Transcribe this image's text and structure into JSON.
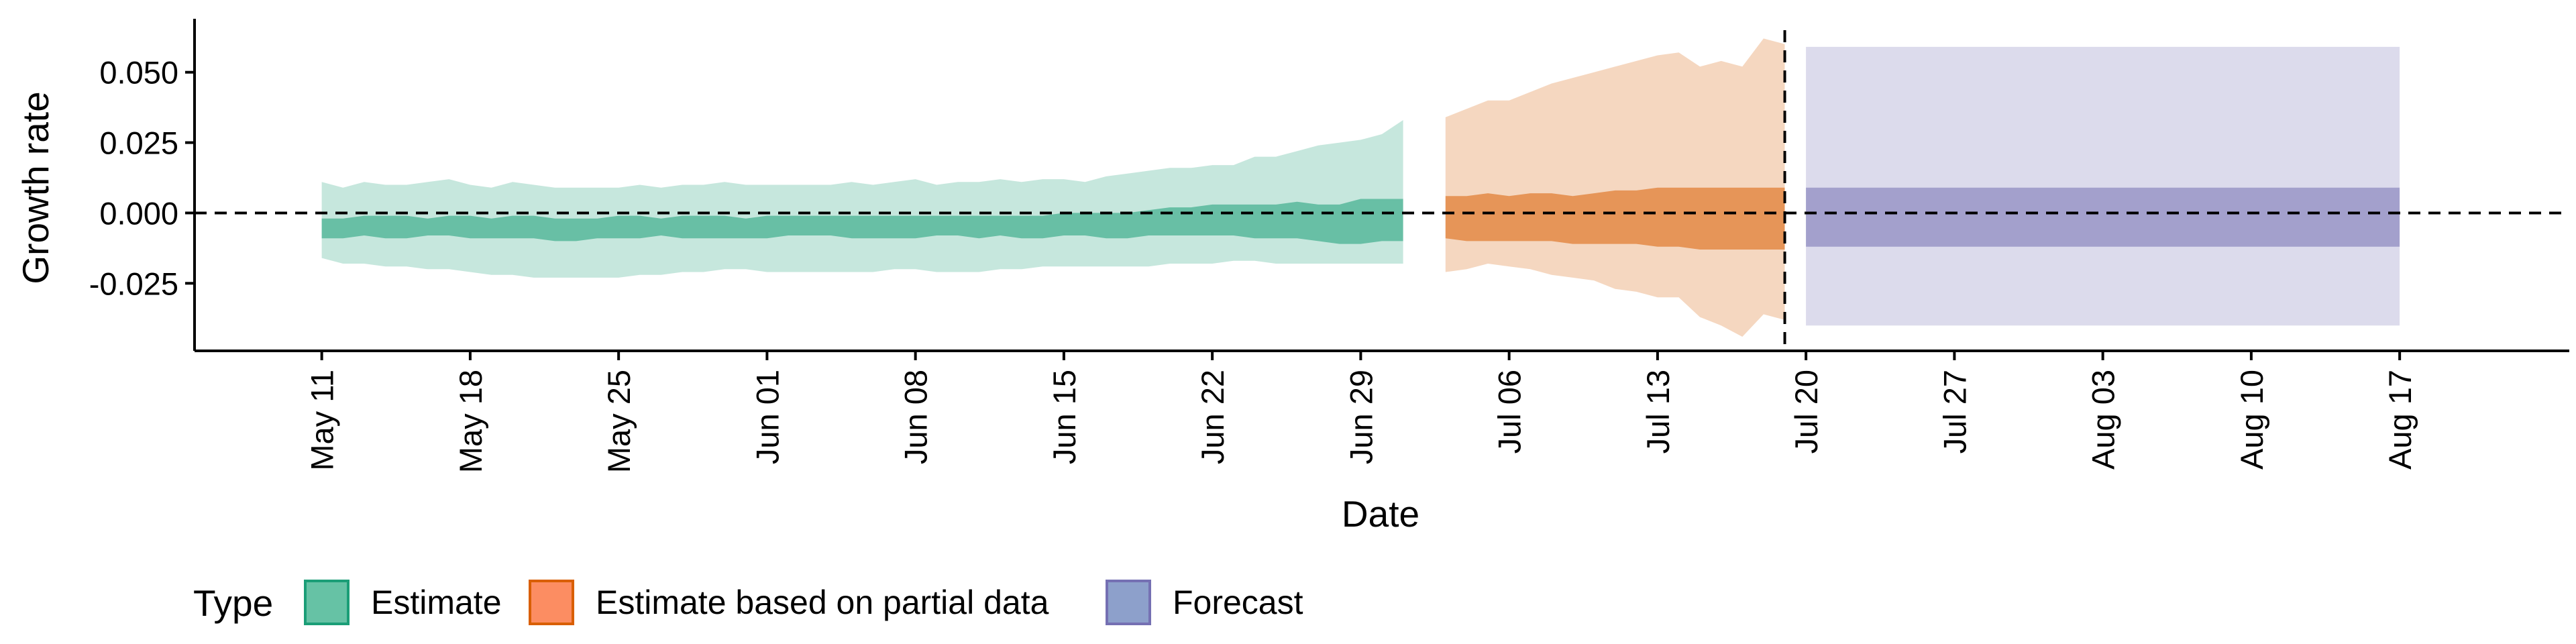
{
  "chart_data": {
    "type": "area",
    "xlabel": "Date",
    "ylabel": "Growth rate",
    "x_axis": {
      "type": "date",
      "ticks": [
        "2020-05-11",
        "2020-05-18",
        "2020-05-25",
        "2020-06-01",
        "2020-06-08",
        "2020-06-15",
        "2020-06-22",
        "2020-06-29",
        "2020-07-06",
        "2020-07-13",
        "2020-07-20",
        "2020-07-27",
        "2020-08-03",
        "2020-08-10",
        "2020-08-17"
      ],
      "tick_labels": [
        "May 11",
        "May 18",
        "May 25",
        "Jun 01",
        "Jun 08",
        "Jun 15",
        "Jun 22",
        "Jun 29",
        "Jul 06",
        "Jul 13",
        "Jul 20",
        "Jul 27",
        "Aug 03",
        "Aug 10",
        "Aug 17"
      ],
      "range": [
        "2020-05-05",
        "2020-08-25"
      ]
    },
    "y_axis": {
      "ticks": [
        0.05,
        0.025,
        0.0,
        -0.025
      ],
      "tick_labels": [
        "0.050",
        "0.025",
        "0.000",
        "-0.025"
      ],
      "range": [
        -0.049,
        0.069
      ]
    },
    "reference_lines": {
      "horizontal_y": 0.0,
      "vertical_x": "2020-07-19",
      "style": "dashed"
    },
    "legend": {
      "title": "Type",
      "position": "bottom-left",
      "items": [
        {
          "label": "Estimate",
          "color": "#66c2a5"
        },
        {
          "label": "Estimate based on partial data",
          "color": "#fc8d62"
        },
        {
          "label": "Forecast",
          "color": "#8da0cb"
        }
      ]
    },
    "series": [
      {
        "name": "Estimate",
        "color": "#1b9e77",
        "x": [
          "2020-05-11",
          "2020-05-12",
          "2020-05-13",
          "2020-05-14",
          "2020-05-15",
          "2020-05-16",
          "2020-05-17",
          "2020-05-18",
          "2020-05-19",
          "2020-05-20",
          "2020-05-21",
          "2020-05-22",
          "2020-05-23",
          "2020-05-24",
          "2020-05-25",
          "2020-05-26",
          "2020-05-27",
          "2020-05-28",
          "2020-05-29",
          "2020-05-30",
          "2020-05-31",
          "2020-06-01",
          "2020-06-02",
          "2020-06-03",
          "2020-06-04",
          "2020-06-05",
          "2020-06-06",
          "2020-06-07",
          "2020-06-08",
          "2020-06-09",
          "2020-06-10",
          "2020-06-11",
          "2020-06-12",
          "2020-06-13",
          "2020-06-14",
          "2020-06-15",
          "2020-06-16",
          "2020-06-17",
          "2020-06-18",
          "2020-06-19",
          "2020-06-20",
          "2020-06-21",
          "2020-06-22",
          "2020-06-23",
          "2020-06-24",
          "2020-06-25",
          "2020-06-26",
          "2020-06-27",
          "2020-06-28",
          "2020-06-29",
          "2020-06-30",
          "2020-07-01"
        ],
        "outer_upper": [
          0.011,
          0.009,
          0.011,
          0.01,
          0.01,
          0.011,
          0.012,
          0.01,
          0.009,
          0.011,
          0.01,
          0.009,
          0.009,
          0.009,
          0.009,
          0.01,
          0.009,
          0.01,
          0.01,
          0.011,
          0.01,
          0.01,
          0.01,
          0.01,
          0.01,
          0.011,
          0.01,
          0.011,
          0.012,
          0.01,
          0.011,
          0.011,
          0.012,
          0.011,
          0.012,
          0.012,
          0.011,
          0.013,
          0.014,
          0.015,
          0.016,
          0.016,
          0.017,
          0.017,
          0.02,
          0.02,
          0.022,
          0.024,
          0.025,
          0.026,
          0.028,
          0.033
        ],
        "inner_upper": [
          -0.002,
          -0.002,
          -0.001,
          -0.001,
          -0.001,
          -0.002,
          -0.001,
          -0.001,
          -0.002,
          -0.001,
          -0.001,
          -0.002,
          -0.002,
          -0.002,
          -0.001,
          -0.001,
          -0.002,
          -0.001,
          -0.001,
          -0.001,
          -0.002,
          -0.001,
          -0.001,
          -0.001,
          -0.001,
          -0.001,
          -0.001,
          -0.001,
          -0.001,
          -0.001,
          -0.001,
          -0.001,
          -0.001,
          -0.001,
          -0.001,
          0.0,
          0.0,
          0.0,
          0.0,
          0.001,
          0.002,
          0.002,
          0.003,
          0.003,
          0.003,
          0.003,
          0.004,
          0.003,
          0.003,
          0.005,
          0.005,
          0.005
        ],
        "inner_lower": [
          -0.009,
          -0.009,
          -0.008,
          -0.009,
          -0.009,
          -0.008,
          -0.008,
          -0.009,
          -0.009,
          -0.009,
          -0.009,
          -0.01,
          -0.01,
          -0.009,
          -0.009,
          -0.009,
          -0.008,
          -0.009,
          -0.009,
          -0.009,
          -0.009,
          -0.009,
          -0.008,
          -0.008,
          -0.008,
          -0.009,
          -0.009,
          -0.009,
          -0.009,
          -0.008,
          -0.008,
          -0.009,
          -0.008,
          -0.009,
          -0.009,
          -0.008,
          -0.008,
          -0.009,
          -0.009,
          -0.008,
          -0.008,
          -0.008,
          -0.008,
          -0.008,
          -0.009,
          -0.009,
          -0.009,
          -0.01,
          -0.011,
          -0.011,
          -0.01,
          -0.01
        ],
        "outer_lower": [
          -0.016,
          -0.018,
          -0.018,
          -0.019,
          -0.019,
          -0.02,
          -0.02,
          -0.021,
          -0.022,
          -0.022,
          -0.023,
          -0.023,
          -0.023,
          -0.023,
          -0.023,
          -0.022,
          -0.022,
          -0.021,
          -0.021,
          -0.02,
          -0.02,
          -0.021,
          -0.021,
          -0.021,
          -0.021,
          -0.021,
          -0.021,
          -0.02,
          -0.02,
          -0.021,
          -0.021,
          -0.021,
          -0.02,
          -0.02,
          -0.019,
          -0.019,
          -0.019,
          -0.019,
          -0.019,
          -0.019,
          -0.018,
          -0.018,
          -0.018,
          -0.017,
          -0.017,
          -0.018,
          -0.018,
          -0.018,
          -0.018,
          -0.018,
          -0.018,
          -0.018
        ]
      },
      {
        "name": "Estimate based on partial data",
        "color": "#d95f02",
        "x": [
          "2020-07-03",
          "2020-07-04",
          "2020-07-05",
          "2020-07-06",
          "2020-07-07",
          "2020-07-08",
          "2020-07-09",
          "2020-07-10",
          "2020-07-11",
          "2020-07-12",
          "2020-07-13",
          "2020-07-14",
          "2020-07-15",
          "2020-07-16",
          "2020-07-17",
          "2020-07-18",
          "2020-07-19"
        ],
        "outer_upper": [
          0.034,
          0.037,
          0.04,
          0.04,
          0.043,
          0.046,
          0.048,
          0.05,
          0.052,
          0.054,
          0.056,
          0.057,
          0.052,
          0.054,
          0.052,
          0.062,
          0.06
        ],
        "inner_upper": [
          0.006,
          0.006,
          0.007,
          0.006,
          0.007,
          0.007,
          0.006,
          0.007,
          0.008,
          0.008,
          0.009,
          0.009,
          0.009,
          0.009,
          0.009,
          0.009,
          0.009
        ],
        "inner_lower": [
          -0.009,
          -0.01,
          -0.01,
          -0.01,
          -0.01,
          -0.01,
          -0.011,
          -0.011,
          -0.011,
          -0.011,
          -0.012,
          -0.012,
          -0.013,
          -0.013,
          -0.013,
          -0.013,
          -0.013
        ],
        "outer_lower": [
          -0.021,
          -0.02,
          -0.018,
          -0.019,
          -0.02,
          -0.022,
          -0.023,
          -0.024,
          -0.027,
          -0.028,
          -0.03,
          -0.03,
          -0.037,
          -0.04,
          -0.044,
          -0.036,
          -0.038
        ]
      },
      {
        "name": "Forecast",
        "color": "#7570b3",
        "x": [
          "2020-07-20",
          "2020-08-17"
        ],
        "outer_upper": [
          0.059,
          0.059
        ],
        "inner_upper": [
          0.009,
          0.009
        ],
        "inner_lower": [
          -0.012,
          -0.012
        ],
        "outer_lower": [
          -0.04,
          -0.04
        ]
      }
    ]
  }
}
